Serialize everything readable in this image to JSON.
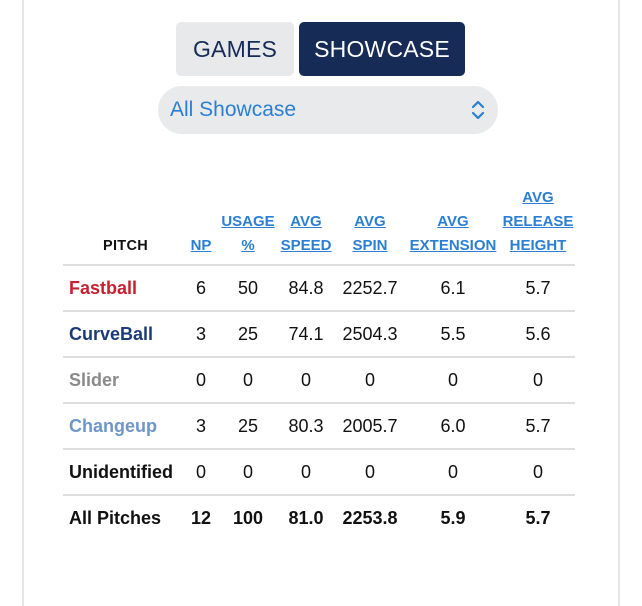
{
  "tabs": [
    {
      "label": "GAMES",
      "active": false
    },
    {
      "label": "SHOWCASE",
      "active": true
    }
  ],
  "filter": {
    "selected": "All Showcase"
  },
  "table": {
    "headers": {
      "pitch": "PITCH",
      "np": "NP",
      "usage_line1": "USAGE",
      "usage_line2": "%",
      "speed_line1": "AVG",
      "speed_line2": "SPEED",
      "spin_line1": "AVG",
      "spin_line2": "SPIN",
      "ext_line1": "AVG",
      "ext_line2": "EXTENSION",
      "rel_line1": "AVG",
      "rel_line2": "RELEASE",
      "rel_line3": "HEIGHT"
    },
    "rows": [
      {
        "pitch": "Fastball",
        "color": "#c8202f",
        "np": "6",
        "usage": "50",
        "speed": "84.8",
        "spin": "2252.7",
        "ext": "6.1",
        "rel": "5.7"
      },
      {
        "pitch": "CurveBall",
        "color": "#1c3a78",
        "np": "3",
        "usage": "25",
        "speed": "74.1",
        "spin": "2504.3",
        "ext": "5.5",
        "rel": "5.6"
      },
      {
        "pitch": "Slider",
        "color": "#8a8a8a",
        "np": "0",
        "usage": "0",
        "speed": "0",
        "spin": "0",
        "ext": "0",
        "rel": "0"
      },
      {
        "pitch": "Changeup",
        "color": "#6e96c8",
        "np": "3",
        "usage": "25",
        "speed": "80.3",
        "spin": "2005.7",
        "ext": "6.0",
        "rel": "5.7"
      },
      {
        "pitch": "Unidentified",
        "color": "#111111",
        "np": "0",
        "usage": "0",
        "speed": "0",
        "spin": "0",
        "ext": "0",
        "rel": "0"
      }
    ],
    "total": {
      "pitch": "All Pitches",
      "np": "12",
      "usage": "100",
      "speed": "81.0",
      "spin": "2253.8",
      "ext": "5.9",
      "rel": "5.7"
    }
  }
}
